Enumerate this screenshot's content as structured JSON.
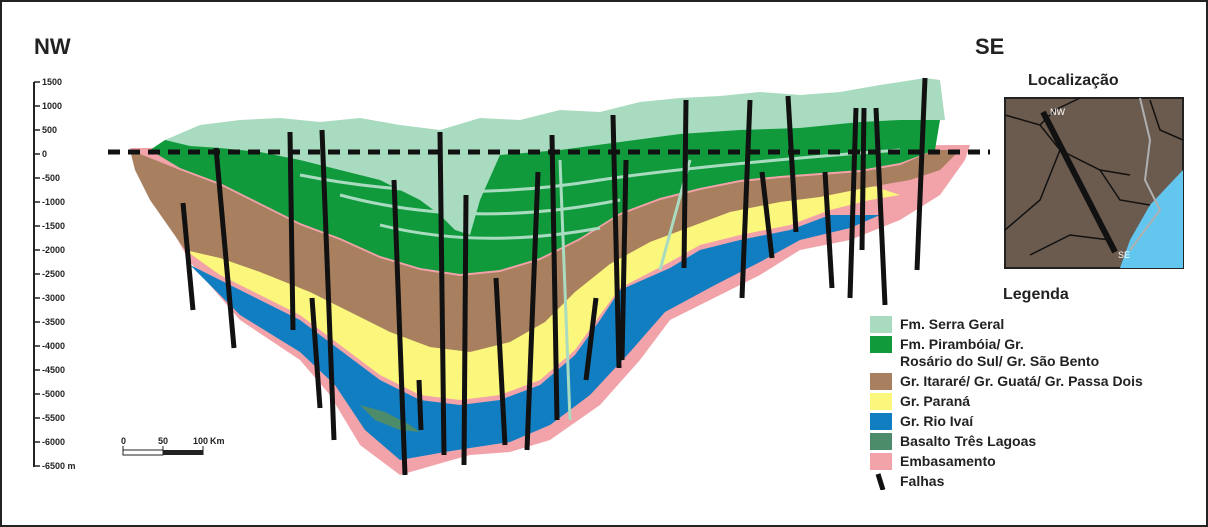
{
  "header": {
    "left_dir": "NW",
    "right_dir": "SE"
  },
  "depth_axis": {
    "ticks": [
      "1500",
      "1000",
      "500",
      "0",
      "-500",
      "-1000",
      "-1500",
      "-2000",
      "-2500",
      "-3000",
      "-3500",
      "-4000",
      "-4500",
      "-5000",
      "-5500",
      "-6000",
      "-6500 m"
    ]
  },
  "scale_bar": {
    "labels": [
      "0",
      "50",
      "100",
      "Km"
    ]
  },
  "location": {
    "title": "Localização",
    "nw": "NW",
    "se": "SE"
  },
  "legend": {
    "title": "Legenda",
    "items": [
      {
        "label": "Fm. Serra Geral",
        "color": "#a8dbbf"
      },
      {
        "label": "Fm. Pirambóia/ Gr.\nRosário do Sul/ Gr. São Bento",
        "color": "#109a3c"
      },
      {
        "label": "Gr. Itararé/ Gr. Guatá/ Gr. Passa Dois",
        "color": "#a9805f"
      },
      {
        "label": "Gr. Paraná",
        "color": "#fbf67c"
      },
      {
        "label": "Gr. Rio Ivaí",
        "color": "#127ec2"
      },
      {
        "label": "Basalto Três Lagoas",
        "color": "#4d8c6a"
      },
      {
        "label": "Embasamento",
        "color": "#f2a3a9"
      },
      {
        "label": "Falhas",
        "color": "#111111"
      }
    ]
  }
}
